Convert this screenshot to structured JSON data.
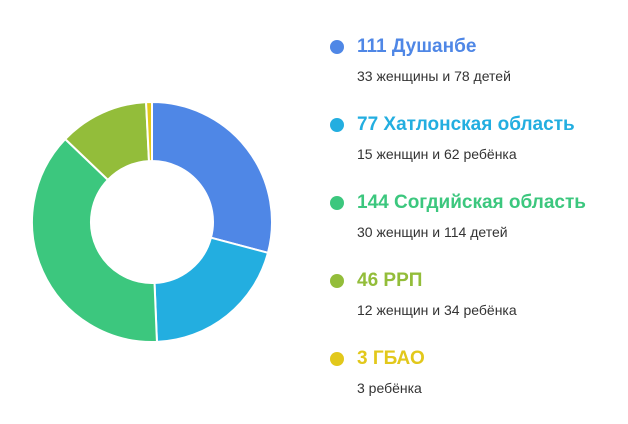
{
  "chart_data": {
    "type": "pie",
    "donut": true,
    "categories": [
      "Душанбе",
      "Хатлонская область",
      "Согдийская область",
      "РРП",
      "ГБАО"
    ],
    "values": [
      111,
      77,
      144,
      46,
      3
    ],
    "colors": [
      "#4f87e6",
      "#23aee0",
      "#3cc77e",
      "#93bd3a",
      "#e2c81b"
    ],
    "legend_position": "right",
    "legend": [
      {
        "title": "111 Душанбе",
        "subtitle": "33 женщины и 78 детей",
        "color": "#4f87e6"
      },
      {
        "title": "77 Хатлонская область",
        "subtitle": "15 женщин и 62 ребёнка",
        "color": "#23aee0"
      },
      {
        "title": "144 Согдийская область",
        "subtitle": "30 женщин и 114 детей",
        "color": "#3cc77e"
      },
      {
        "title": "46 РРП",
        "subtitle": "12 женщин и 34 ребёнка",
        "color": "#93bd3a"
      },
      {
        "title": "3 ГБАО",
        "subtitle": "3 ребёнка",
        "color": "#e2c81b"
      }
    ]
  }
}
